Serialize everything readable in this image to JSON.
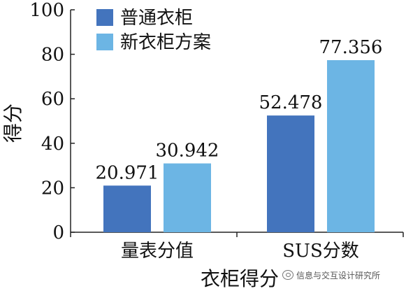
{
  "chart_data": {
    "type": "bar",
    "categories": [
      "量表分值",
      "SUS分数"
    ],
    "series": [
      {
        "name": "普通衣柜",
        "values": [
          20.971,
          52.478
        ],
        "color": "#4374bd"
      },
      {
        "name": "新衣柜方案",
        "values": [
          30.942,
          77.356
        ],
        "color": "#6cb5e4"
      }
    ],
    "value_labels": [
      [
        "20.971",
        "52.478"
      ],
      [
        "30.942",
        "77.356"
      ]
    ],
    "title": "",
    "xlabel": "衣柜得分",
    "ylabel": "得分",
    "ylim": [
      0,
      100
    ],
    "yticks": [
      "0",
      "20",
      "40",
      "60",
      "80",
      "100"
    ],
    "legend_position": "top-left",
    "grid": false
  },
  "watermark": {
    "text": "信息与交互设计研究所",
    "icon": "wechat-icon"
  }
}
